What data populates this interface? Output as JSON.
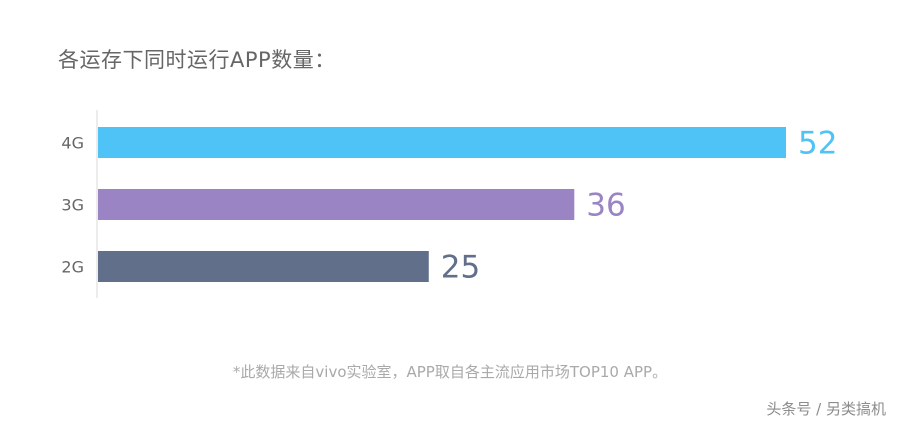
{
  "header": {
    "title": "各运存下同时运行APP数量："
  },
  "chart_data": {
    "type": "bar",
    "orientation": "horizontal",
    "categories": [
      "4G",
      "3G",
      "2G"
    ],
    "values": [
      52,
      36,
      25
    ],
    "colors": [
      "#4fc3f5",
      "#9b84c4",
      "#626f8a"
    ],
    "title": "各运存下同时运行APP数量：",
    "xlim": [
      0,
      52
    ],
    "grid": false,
    "legend": "none"
  },
  "footnote": "*此数据来自vivo实验室，APP取自各主流应用市场TOP10 APP。",
  "watermark": "头条号 / 另类搞机"
}
